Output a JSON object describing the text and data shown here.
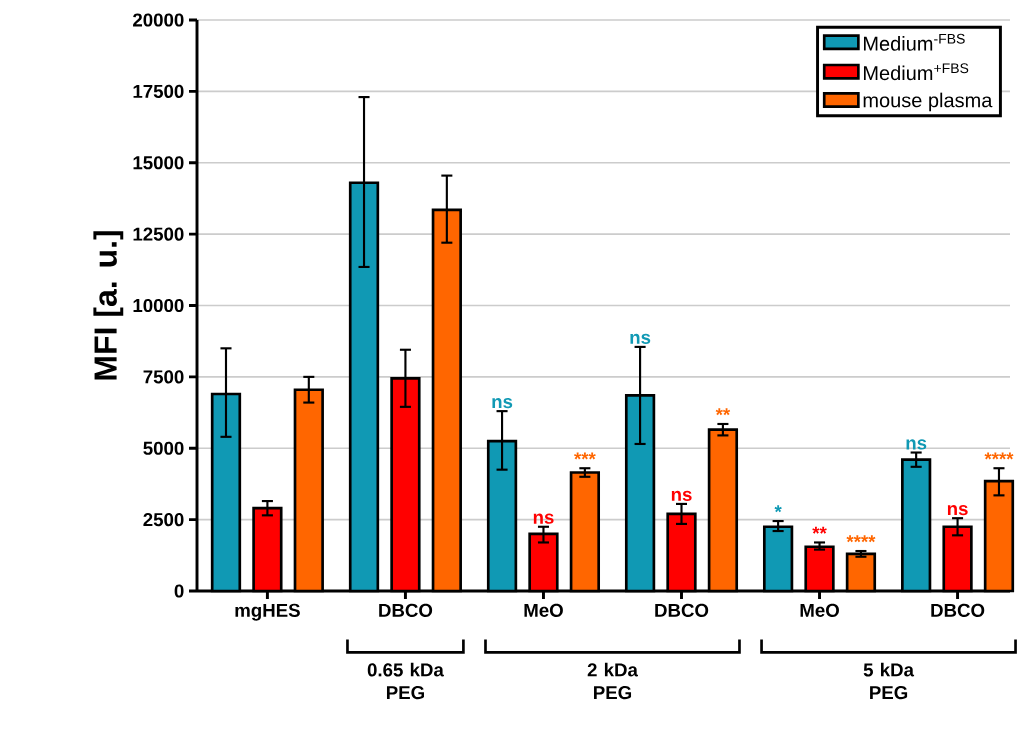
{
  "chart_data": {
    "type": "bar",
    "ylabel": "MFI [a. u.]",
    "categories": [
      "mgHES",
      "DBCO",
      "MeO",
      "DBCO",
      "MeO",
      "DBCO"
    ],
    "series": [
      {
        "name": "Medium$^{-FBS}$",
        "color": "#1099b4",
        "values": [
          6900,
          14300,
          5250,
          6850,
          2250,
          4600
        ],
        "errors": [
          [
            5400,
            8500
          ],
          [
            11350,
            17300
          ],
          [
            4250,
            6300
          ],
          [
            5150,
            8550
          ],
          [
            2100,
            2450
          ],
          [
            4350,
            4850
          ]
        ],
        "value_labels": [
          null,
          null,
          "ns",
          "ns",
          "*",
          "ns"
        ]
      },
      {
        "name": "Medium$^{+FBS}$",
        "color": "#ff0000",
        "values": [
          2900,
          7450,
          2000,
          2700,
          1550,
          2250
        ],
        "errors": [
          [
            2650,
            3150
          ],
          [
            6450,
            8450
          ],
          [
            1700,
            2250
          ],
          [
            2350,
            3050
          ],
          [
            1450,
            1700
          ],
          [
            1950,
            2550
          ]
        ],
        "value_labels": [
          null,
          null,
          "ns",
          "ns",
          "**",
          "ns"
        ]
      },
      {
        "name": "mouse plasma",
        "color": "#ff6600",
        "values": [
          7050,
          13350,
          4150,
          5650,
          1300,
          3850
        ],
        "errors": [
          [
            6600,
            7500
          ],
          [
            12200,
            14550
          ],
          [
            4000,
            4300
          ],
          [
            5450,
            5850
          ],
          [
            1200,
            1400
          ],
          [
            3350,
            4300
          ]
        ],
        "value_labels": [
          null,
          null,
          "***",
          "**",
          "****",
          "****"
        ]
      }
    ],
    "ylim": [
      0,
      20000
    ],
    "yticks": [
      0,
      2500,
      5000,
      7500,
      10000,
      12500,
      15000,
      17500,
      20000
    ],
    "grid": "y",
    "legend": "top right",
    "annotations": [
      "0.65 kDa PEG",
      "2 kDa PEG",
      "5 kDa PEG"
    ]
  }
}
